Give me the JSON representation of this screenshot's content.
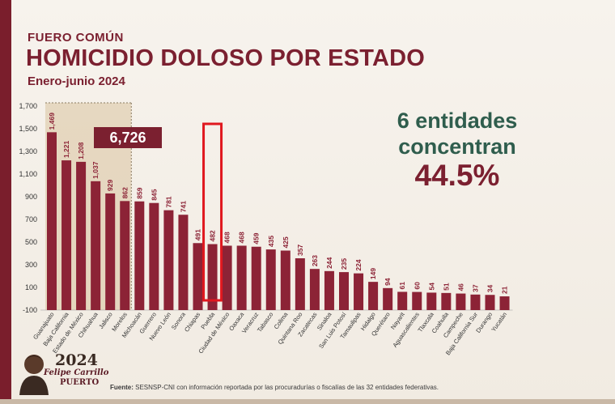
{
  "header": {
    "kicker": "FUERO COMÚN",
    "title": "HOMICIDIO DOLOSO POR ESTADO",
    "period": "Enero-junio 2024"
  },
  "callout": {
    "line1": "6 entidades",
    "line2": "concentran",
    "percent": "44.5%"
  },
  "source": {
    "label": "Fuente:",
    "text": "SESNSP-CNI con información reportada por las procuradurías o fiscalías de las 32 entidades federativas."
  },
  "logo": {
    "year": "2024",
    "line1": "Felipe Carrillo",
    "line2": "PUERTO"
  },
  "colors": {
    "bar": "#8c2336",
    "highlight_fill": "#d9c29f",
    "total_badge": "#7b2030",
    "marker": "#e0181f",
    "title": "#7b2030",
    "accent_green": "#2f5d4d"
  },
  "chart_data": {
    "type": "bar",
    "categories": [
      "Guanajuato",
      "Baja California",
      "Estado de México",
      "Chihuahua",
      "Jalisco",
      "Morelos",
      "Michoacán",
      "Guerrero",
      "Nuevo León",
      "Sonora",
      "Chiapas",
      "Puebla",
      "Ciudad de México",
      "Oaxaca",
      "Veracruz",
      "Tabasco",
      "Colima",
      "Quintana Roo",
      "Zacatecas",
      "Sinaloa",
      "San Luis Potosí",
      "Tamaulipas",
      "Hidalgo",
      "Querétaro",
      "Nayarit",
      "Aguascalientes",
      "Tlaxcala",
      "Coahuila",
      "Campeche",
      "Baja California Sur",
      "Durango",
      "Yucatán"
    ],
    "values": [
      1469,
      1221,
      1208,
      1037,
      929,
      862,
      859,
      845,
      781,
      741,
      491,
      482,
      468,
      468,
      459,
      435,
      425,
      357,
      263,
      244,
      235,
      224,
      149,
      94,
      61,
      60,
      54,
      51,
      46,
      37,
      34,
      21
    ],
    "value_labels": [
      "1,469",
      "1,221",
      "1,208",
      "1,037",
      "929",
      "862",
      "859",
      "845",
      "781",
      "741",
      "491",
      "482",
      "468",
      "468",
      "459",
      "435",
      "425",
      "357",
      "263",
      "244",
      "235",
      "224",
      "149",
      "94",
      "61",
      "60",
      "54",
      "51",
      "46",
      "37",
      "34",
      "21"
    ],
    "yticks": [
      "-100",
      "100",
      "300",
      "500",
      "700",
      "900",
      "1,100",
      "1,300",
      "1,500",
      "1,700"
    ],
    "ytick_values": [
      -100,
      100,
      300,
      500,
      700,
      900,
      1100,
      1300,
      1500,
      1700
    ],
    "ylim": [
      -100,
      1700
    ],
    "highlight_count": 6,
    "highlight_total": "6,726",
    "marked_category": "Puebla",
    "grid": false,
    "legend": "none"
  }
}
